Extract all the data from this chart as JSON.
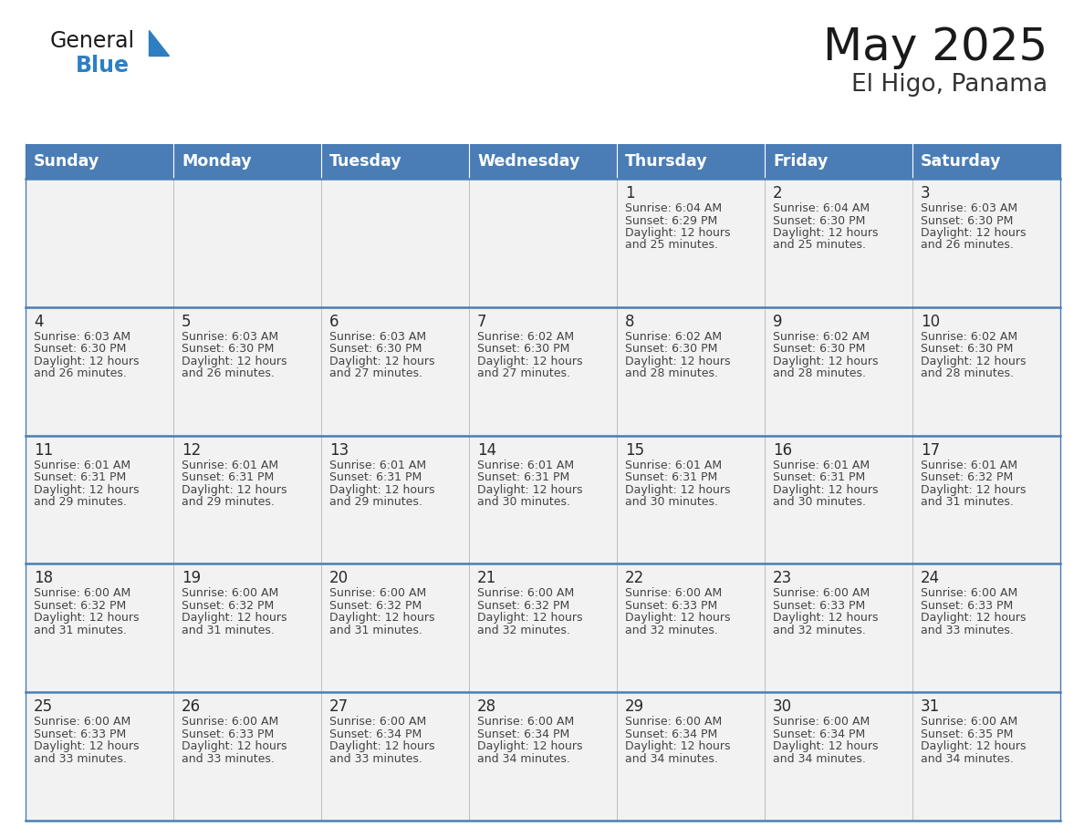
{
  "title": "May 2025",
  "subtitle": "El Higo, Panama",
  "days_of_week": [
    "Sunday",
    "Monday",
    "Tuesday",
    "Wednesday",
    "Thursday",
    "Friday",
    "Saturday"
  ],
  "header_bg": "#4a7db5",
  "header_text": "#ffffff",
  "cell_bg": "#f2f2f2",
  "cell_bg_white": "#ffffff",
  "day_number_color": "#2a2a2a",
  "text_color": "#444444",
  "row_border_color": "#4a7db5",
  "col_border_color": "#c0c0c0",
  "title_color": "#1a1a1a",
  "subtitle_color": "#333333",
  "general_color": "#1a1a1a",
  "blue_color": "#2e7fc1",
  "triangle_color": "#2e7fc1",
  "weeks": [
    [
      null,
      null,
      null,
      null,
      {
        "day": 1,
        "sunrise": "6:04 AM",
        "sunset": "6:29 PM",
        "daylight": "12 hours and 25 minutes."
      },
      {
        "day": 2,
        "sunrise": "6:04 AM",
        "sunset": "6:30 PM",
        "daylight": "12 hours and 25 minutes."
      },
      {
        "day": 3,
        "sunrise": "6:03 AM",
        "sunset": "6:30 PM",
        "daylight": "12 hours and 26 minutes."
      }
    ],
    [
      {
        "day": 4,
        "sunrise": "6:03 AM",
        "sunset": "6:30 PM",
        "daylight": "12 hours and 26 minutes."
      },
      {
        "day": 5,
        "sunrise": "6:03 AM",
        "sunset": "6:30 PM",
        "daylight": "12 hours and 26 minutes."
      },
      {
        "day": 6,
        "sunrise": "6:03 AM",
        "sunset": "6:30 PM",
        "daylight": "12 hours and 27 minutes."
      },
      {
        "day": 7,
        "sunrise": "6:02 AM",
        "sunset": "6:30 PM",
        "daylight": "12 hours and 27 minutes."
      },
      {
        "day": 8,
        "sunrise": "6:02 AM",
        "sunset": "6:30 PM",
        "daylight": "12 hours and 28 minutes."
      },
      {
        "day": 9,
        "sunrise": "6:02 AM",
        "sunset": "6:30 PM",
        "daylight": "12 hours and 28 minutes."
      },
      {
        "day": 10,
        "sunrise": "6:02 AM",
        "sunset": "6:30 PM",
        "daylight": "12 hours and 28 minutes."
      }
    ],
    [
      {
        "day": 11,
        "sunrise": "6:01 AM",
        "sunset": "6:31 PM",
        "daylight": "12 hours and 29 minutes."
      },
      {
        "day": 12,
        "sunrise": "6:01 AM",
        "sunset": "6:31 PM",
        "daylight": "12 hours and 29 minutes."
      },
      {
        "day": 13,
        "sunrise": "6:01 AM",
        "sunset": "6:31 PM",
        "daylight": "12 hours and 29 minutes."
      },
      {
        "day": 14,
        "sunrise": "6:01 AM",
        "sunset": "6:31 PM",
        "daylight": "12 hours and 30 minutes."
      },
      {
        "day": 15,
        "sunrise": "6:01 AM",
        "sunset": "6:31 PM",
        "daylight": "12 hours and 30 minutes."
      },
      {
        "day": 16,
        "sunrise": "6:01 AM",
        "sunset": "6:31 PM",
        "daylight": "12 hours and 30 minutes."
      },
      {
        "day": 17,
        "sunrise": "6:01 AM",
        "sunset": "6:32 PM",
        "daylight": "12 hours and 31 minutes."
      }
    ],
    [
      {
        "day": 18,
        "sunrise": "6:00 AM",
        "sunset": "6:32 PM",
        "daylight": "12 hours and 31 minutes."
      },
      {
        "day": 19,
        "sunrise": "6:00 AM",
        "sunset": "6:32 PM",
        "daylight": "12 hours and 31 minutes."
      },
      {
        "day": 20,
        "sunrise": "6:00 AM",
        "sunset": "6:32 PM",
        "daylight": "12 hours and 31 minutes."
      },
      {
        "day": 21,
        "sunrise": "6:00 AM",
        "sunset": "6:32 PM",
        "daylight": "12 hours and 32 minutes."
      },
      {
        "day": 22,
        "sunrise": "6:00 AM",
        "sunset": "6:33 PM",
        "daylight": "12 hours and 32 minutes."
      },
      {
        "day": 23,
        "sunrise": "6:00 AM",
        "sunset": "6:33 PM",
        "daylight": "12 hours and 32 minutes."
      },
      {
        "day": 24,
        "sunrise": "6:00 AM",
        "sunset": "6:33 PM",
        "daylight": "12 hours and 33 minutes."
      }
    ],
    [
      {
        "day": 25,
        "sunrise": "6:00 AM",
        "sunset": "6:33 PM",
        "daylight": "12 hours and 33 minutes."
      },
      {
        "day": 26,
        "sunrise": "6:00 AM",
        "sunset": "6:33 PM",
        "daylight": "12 hours and 33 minutes."
      },
      {
        "day": 27,
        "sunrise": "6:00 AM",
        "sunset": "6:34 PM",
        "daylight": "12 hours and 33 minutes."
      },
      {
        "day": 28,
        "sunrise": "6:00 AM",
        "sunset": "6:34 PM",
        "daylight": "12 hours and 34 minutes."
      },
      {
        "day": 29,
        "sunrise": "6:00 AM",
        "sunset": "6:34 PM",
        "daylight": "12 hours and 34 minutes."
      },
      {
        "day": 30,
        "sunrise": "6:00 AM",
        "sunset": "6:34 PM",
        "daylight": "12 hours and 34 minutes."
      },
      {
        "day": 31,
        "sunrise": "6:00 AM",
        "sunset": "6:35 PM",
        "daylight": "12 hours and 34 minutes."
      }
    ]
  ]
}
